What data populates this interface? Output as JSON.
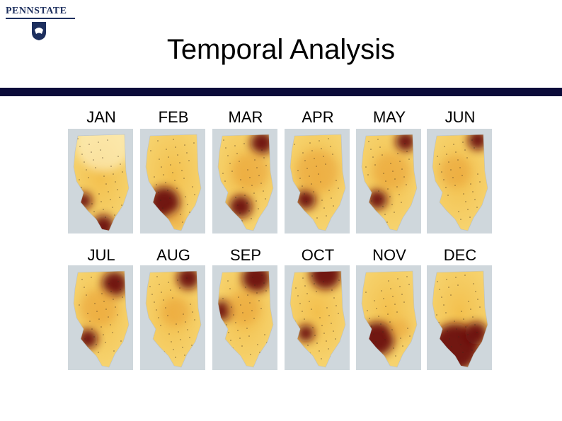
{
  "header": {
    "logo_text": "PENNSTATE",
    "title": "Temporal Analysis"
  },
  "colors": {
    "rule": "#0b0b3a",
    "brand_navy": "#1d2f5e",
    "low": "#fff4b0",
    "mid": "#e9a23b",
    "high": "#6b0a0a"
  },
  "months": [
    {
      "label": "JAN"
    },
    {
      "label": "FEB"
    },
    {
      "label": "MAR"
    },
    {
      "label": "APR"
    },
    {
      "label": "MAY"
    },
    {
      "label": "JUN"
    },
    {
      "label": "JUL"
    },
    {
      "label": "AUG"
    },
    {
      "label": "SEP"
    },
    {
      "label": "OCT"
    },
    {
      "label": "NOV"
    },
    {
      "label": "DEC"
    }
  ]
}
